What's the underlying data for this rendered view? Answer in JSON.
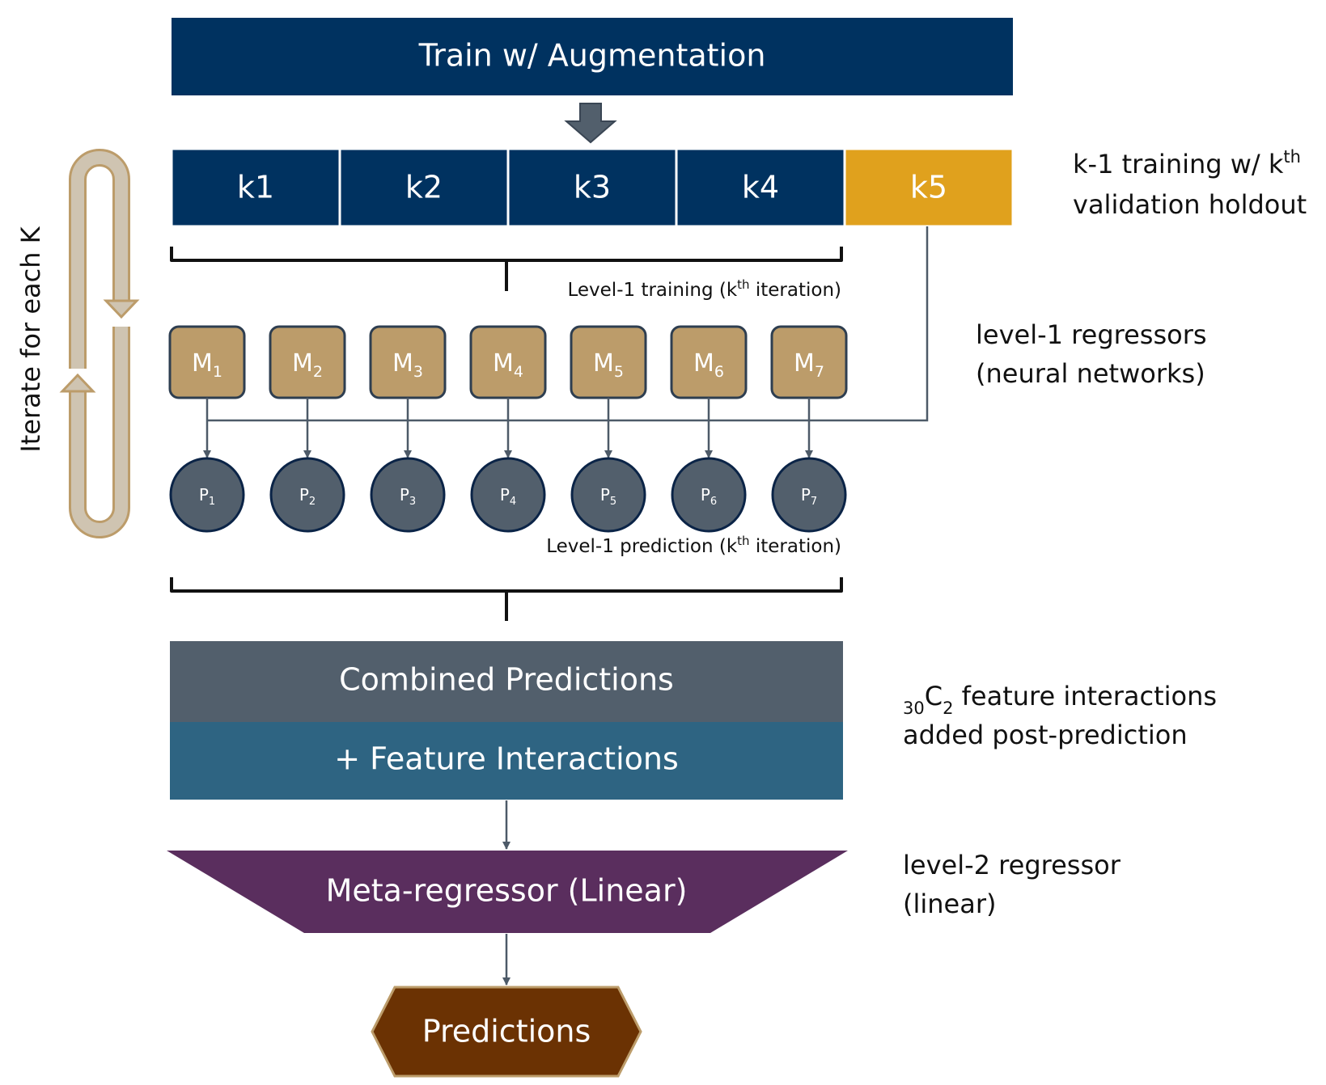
{
  "colors": {
    "navy": "#003260",
    "gold": "#E0A11D",
    "tan": "#BC9C6A",
    "tan_border": "#2E3E50",
    "slate": "#525F6C",
    "steel_blue": "#2E6482",
    "purple": "#5A2E5E",
    "brown": "#6B3203",
    "brown_border": "#BC9C6A",
    "connector": "#4D5A68",
    "loop_fill": "#CFC4B1",
    "loop_stroke": "#BC9C6A"
  },
  "train_box": {
    "label": "Train w/ Augmentation"
  },
  "folds": [
    {
      "label": "k1",
      "holdout": false
    },
    {
      "label": "k2",
      "holdout": false
    },
    {
      "label": "k3",
      "holdout": false
    },
    {
      "label": "k4",
      "holdout": false
    },
    {
      "label": "k5",
      "holdout": true
    }
  ],
  "fold_note": {
    "line1_pre": "k-1 training w/ k",
    "line1_sup": "th",
    "line2": "validation holdout"
  },
  "iterate_label": "Iterate for each K",
  "level1_training_label": {
    "pre": "Level-1 training (k",
    "sup": "th",
    "post": " iteration)"
  },
  "models": [
    {
      "letter": "M",
      "sub": "1"
    },
    {
      "letter": "M",
      "sub": "2"
    },
    {
      "letter": "M",
      "sub": "3"
    },
    {
      "letter": "M",
      "sub": "4"
    },
    {
      "letter": "M",
      "sub": "5"
    },
    {
      "letter": "M",
      "sub": "6"
    },
    {
      "letter": "M",
      "sub": "7"
    }
  ],
  "models_note": {
    "line1": "level-1 regressors",
    "line2": "(neural networks)"
  },
  "predictions": [
    {
      "letter": "P",
      "sub": "1"
    },
    {
      "letter": "P",
      "sub": "2"
    },
    {
      "letter": "P",
      "sub": "3"
    },
    {
      "letter": "P",
      "sub": "4"
    },
    {
      "letter": "P",
      "sub": "5"
    },
    {
      "letter": "P",
      "sub": "6"
    },
    {
      "letter": "P",
      "sub": "7"
    }
  ],
  "level1_prediction_label": {
    "pre": "Level-1 prediction (k",
    "sup": "th",
    "post": " iteration)"
  },
  "combined": {
    "top": "Combined Predictions",
    "bottom": "+ Feature Interactions"
  },
  "combined_note": {
    "line1_presub": "30",
    "line1_c": "C",
    "line1_sub": "2",
    "line1_post": " feature interactions",
    "line2": "added post-prediction"
  },
  "meta": {
    "label": "Meta-regressor (Linear)"
  },
  "meta_note": {
    "line1": "level-2 regressor",
    "line2": "(linear)"
  },
  "final": {
    "label": "Predictions"
  }
}
